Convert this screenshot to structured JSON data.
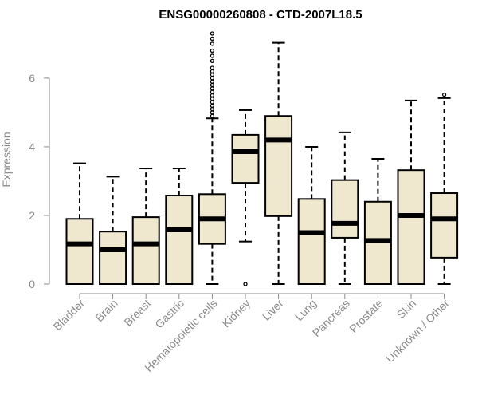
{
  "chart_data": {
    "type": "boxplot",
    "title": "ENSG00000260808 - CTD-2007L18.5",
    "xlabel": "",
    "ylabel": "Expression",
    "ylim": [
      0,
      7.3
    ],
    "yticks": [
      0,
      2,
      4,
      6
    ],
    "box_fill": "#efe8cf",
    "categories": [
      "Bladder",
      "Brain",
      "Breast",
      "Gastric",
      "Hematopoietic cells",
      "Kidney",
      "Liver",
      "Lung",
      "Pancreas",
      "Prostate",
      "Skin",
      "Unknown / Other"
    ],
    "boxes": [
      {
        "min": 0,
        "q1": 0,
        "median": 1.17,
        "q3": 1.9,
        "max": 3.52,
        "outliers": []
      },
      {
        "min": 0,
        "q1": 0,
        "median": 1.0,
        "q3": 1.53,
        "max": 3.13,
        "outliers": []
      },
      {
        "min": 0,
        "q1": 0,
        "median": 1.17,
        "q3": 1.95,
        "max": 3.37,
        "outliers": []
      },
      {
        "min": 0,
        "q1": 0,
        "median": 1.58,
        "q3": 2.58,
        "max": 3.37,
        "outliers": []
      },
      {
        "min": 0,
        "q1": 1.17,
        "median": 1.9,
        "q3": 2.62,
        "max": 4.83,
        "outliers": [
          4.9,
          5.0,
          5.1,
          5.2,
          5.3,
          5.4,
          5.5,
          5.6,
          5.7,
          5.8,
          5.9,
          6.0,
          6.1,
          6.2,
          6.3,
          6.5,
          6.65,
          6.8,
          7.0,
          7.15,
          7.3
        ]
      },
      {
        "min": 1.24,
        "q1": 2.95,
        "median": 3.86,
        "q3": 4.35,
        "max": 5.07,
        "outliers": [
          0.0
        ]
      },
      {
        "min": 0,
        "q1": 1.98,
        "median": 4.2,
        "q3": 4.9,
        "max": 7.03,
        "outliers": []
      },
      {
        "min": 0,
        "q1": 0,
        "median": 1.5,
        "q3": 2.48,
        "max": 4.0,
        "outliers": []
      },
      {
        "min": 0,
        "q1": 1.35,
        "median": 1.77,
        "q3": 3.03,
        "max": 4.42,
        "outliers": []
      },
      {
        "min": 0,
        "q1": 0,
        "median": 1.27,
        "q3": 2.4,
        "max": 3.65,
        "outliers": []
      },
      {
        "min": 0,
        "q1": 0,
        "median": 2.0,
        "q3": 3.32,
        "max": 5.35,
        "outliers": []
      },
      {
        "min": 0,
        "q1": 0.77,
        "median": 1.9,
        "q3": 2.65,
        "max": 5.42,
        "outliers": [
          5.52
        ]
      }
    ]
  }
}
